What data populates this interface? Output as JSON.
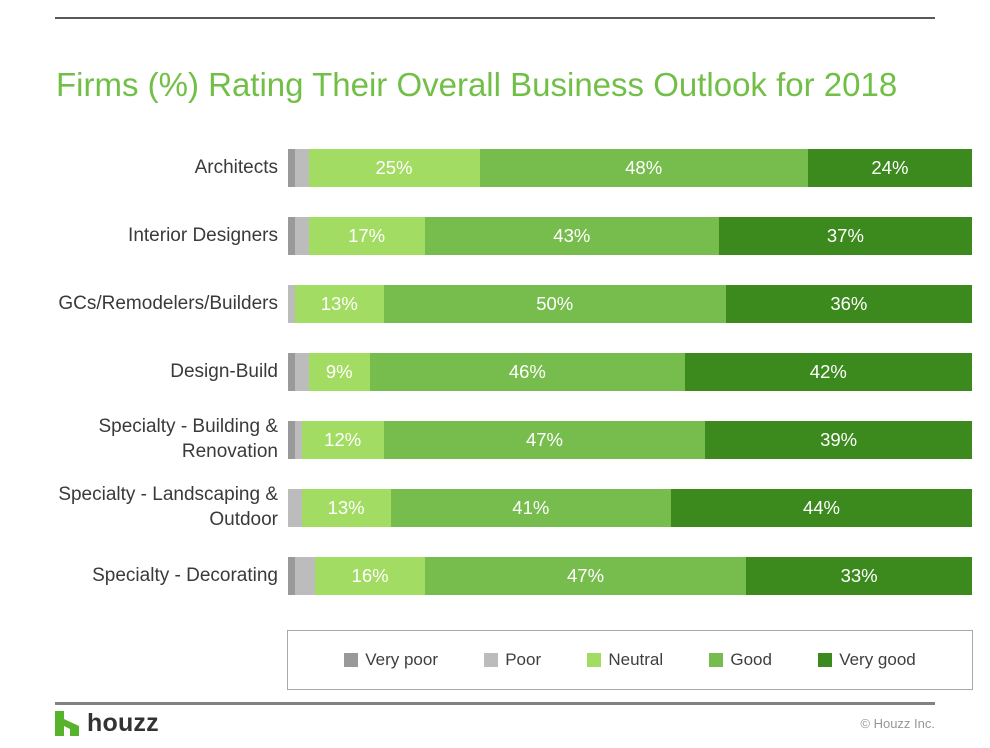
{
  "page": {
    "title": "Firms (%) Rating Their Overall Business Outlook for 2018",
    "title_color": "#72bf47"
  },
  "chart_data": {
    "type": "bar",
    "orientation": "horizontal",
    "stacked": true,
    "title": "Firms (%) Rating Their Overall Business Outlook for 2018",
    "categories": [
      "Architects",
      "Interior Designers",
      "GCs/Remodelers/Builders",
      "Design-Build",
      "Specialty - Building &\nRenovation",
      "Specialty - Landscaping &\nOutdoor",
      "Specialty - Decorating"
    ],
    "series": [
      {
        "name": "Very poor",
        "color": "#999999",
        "data_labels": false,
        "values": [
          1,
          1,
          0,
          1,
          1,
          0,
          1
        ]
      },
      {
        "name": "Poor",
        "color": "#bcbcbc",
        "data_labels": false,
        "values": [
          2,
          2,
          1,
          2,
          1,
          2,
          3
        ]
      },
      {
        "name": "Neutral",
        "color": "#a3dc62",
        "data_labels": true,
        "values": [
          25,
          17,
          13,
          9,
          12,
          13,
          16
        ]
      },
      {
        "name": "Good",
        "color": "#77bd4d",
        "data_labels": true,
        "values": [
          48,
          43,
          50,
          46,
          47,
          41,
          47
        ]
      },
      {
        "name": "Very good",
        "color": "#3c8a1e",
        "data_labels": true,
        "values": [
          24,
          37,
          36,
          42,
          39,
          44,
          33
        ]
      }
    ],
    "value_suffix": "%",
    "xlim": [
      0,
      100
    ],
    "grid": false,
    "legend_position": "bottom"
  },
  "footer": {
    "brand": "houzz",
    "brand_color": "#57b32c",
    "copyright": "© Houzz Inc."
  }
}
